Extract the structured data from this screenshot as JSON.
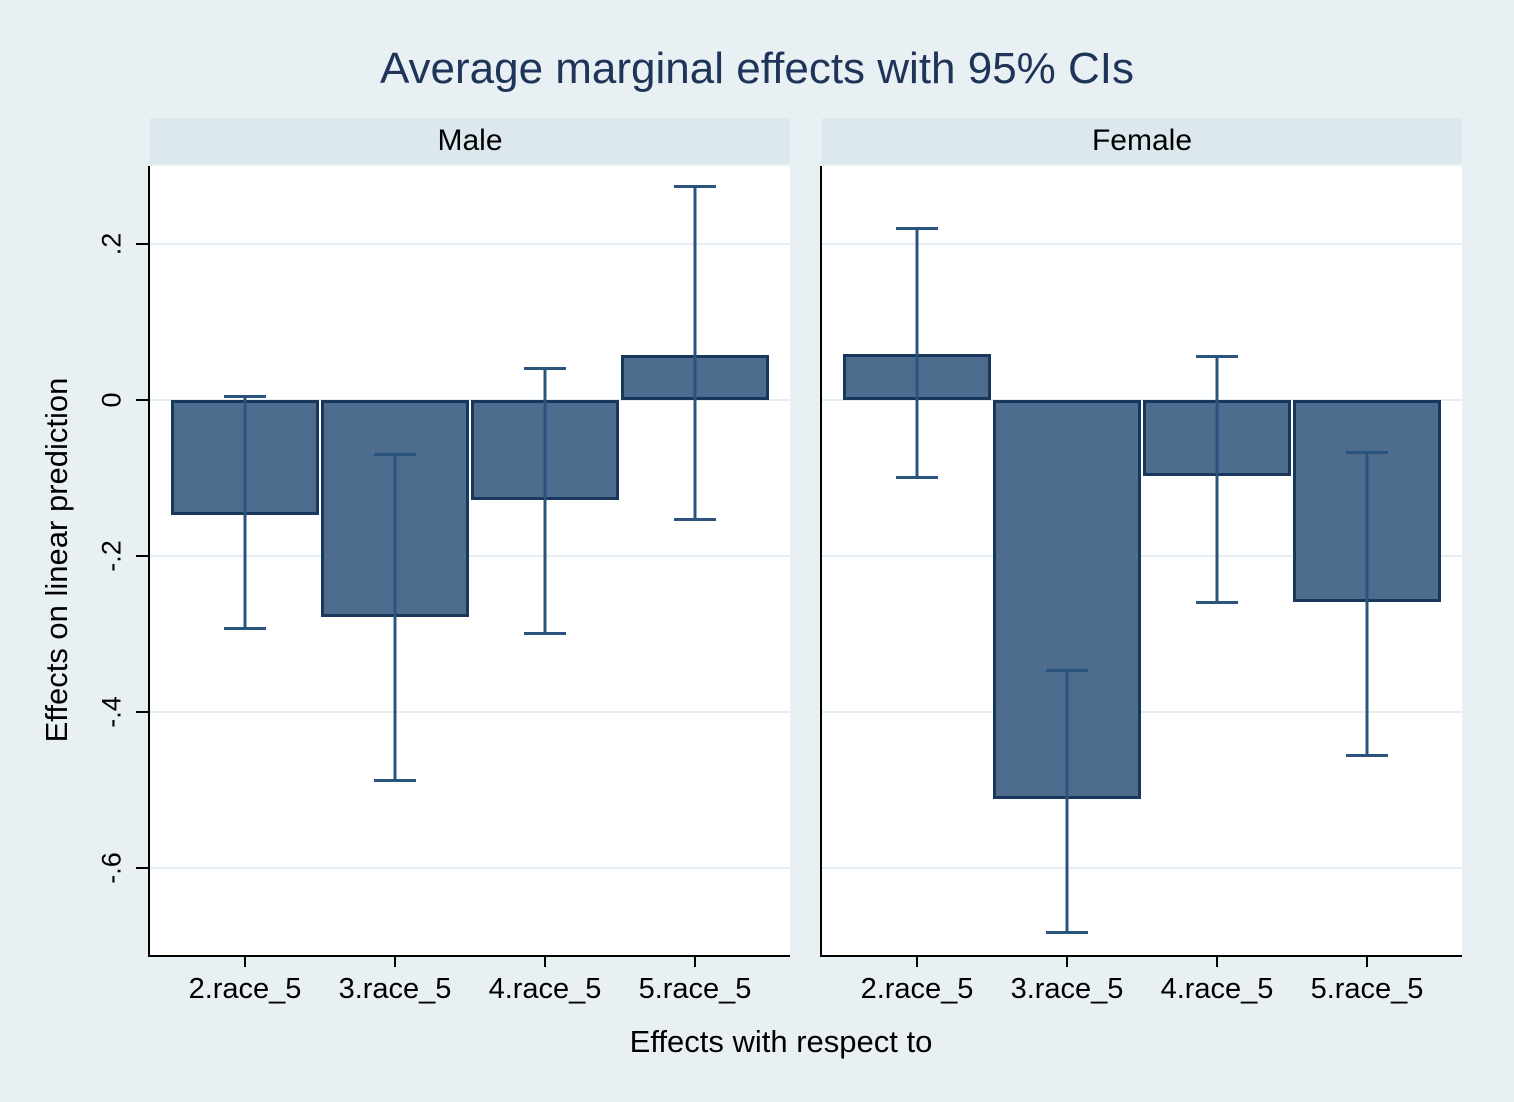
{
  "chart_data": {
    "type": "bar",
    "title": "Average marginal effects with 95% CIs",
    "xlabel": "Effects with respect to",
    "ylabel": "Effects on linear prediction",
    "categories": [
      "2.race_5",
      "3.race_5",
      "4.race_5",
      "5.race_5"
    ],
    "panels": [
      {
        "label": "Male",
        "series": [
          {
            "category": "2.race_5",
            "estimate": -0.148,
            "ci_low": -0.292,
            "ci_high": 0.005
          },
          {
            "category": "3.race_5",
            "estimate": -0.278,
            "ci_low": -0.487,
            "ci_high": -0.069
          },
          {
            "category": "4.race_5",
            "estimate": -0.128,
            "ci_low": -0.299,
            "ci_high": 0.041
          },
          {
            "category": "5.race_5",
            "estimate": 0.058,
            "ci_low": -0.153,
            "ci_high": 0.274
          }
        ]
      },
      {
        "label": "Female",
        "series": [
          {
            "category": "2.race_5",
            "estimate": 0.059,
            "ci_low": -0.099,
            "ci_high": 0.22
          },
          {
            "category": "3.race_5",
            "estimate": -0.512,
            "ci_low": -0.682,
            "ci_high": -0.346
          },
          {
            "category": "4.race_5",
            "estimate": -0.097,
            "ci_low": -0.259,
            "ci_high": 0.056
          },
          {
            "category": "5.race_5",
            "estimate": -0.259,
            "ci_low": -0.455,
            "ci_high": -0.067
          }
        ]
      }
    ],
    "y_ticks": [
      {
        "value": 0.2,
        "label": ".2"
      },
      {
        "value": 0,
        "label": "0"
      },
      {
        "value": -0.2,
        "label": "-.2"
      },
      {
        "value": -0.4,
        "label": "-.4"
      },
      {
        "value": -0.6,
        "label": "-.6"
      }
    ],
    "ylim": [
      -0.712,
      0.3
    ],
    "grid": true,
    "legend": "none",
    "error_bar_meaning": "95% CI",
    "colors": {
      "background": "#e9f0f3",
      "panel_header_bg": "#dce7ee",
      "plot_bg": "#ffffff",
      "gridline": "#e4edf4",
      "bar_fill": "#4e6d8e",
      "bar_border": "#17375c",
      "ci_line": "#2a547d",
      "title_text": "#1f3459",
      "axis_text": "#000000"
    }
  }
}
